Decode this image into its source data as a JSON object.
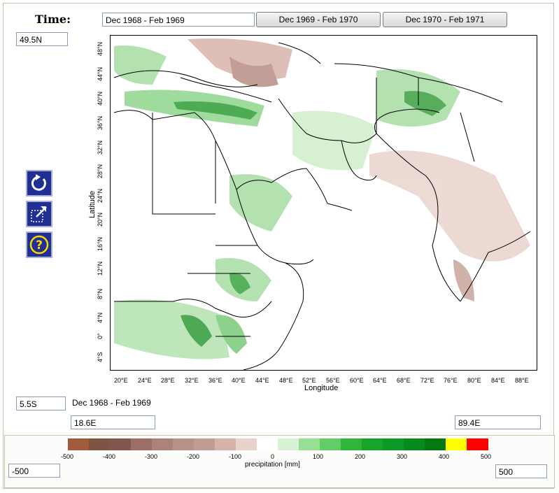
{
  "time": {
    "label": "Time:",
    "current": "Dec 1968 - Feb 1969",
    "next_button": "Dec 1969 - Feb 1970",
    "next2_button": "Dec 1970 - Feb 1971"
  },
  "bounds": {
    "north": "49.5N",
    "south": "5.5S",
    "west": "18.6E",
    "east": "89.4E"
  },
  "period_caption": "Dec 1968 - Feb 1969",
  "icons": {
    "refresh": "refresh-icon",
    "zoom": "zoom-region-icon",
    "help": "help-icon"
  },
  "map": {
    "xlabel": "Longitude",
    "ylabel": "Latitude",
    "lat_ticks": [
      "48°N",
      "44°N",
      "40°N",
      "36°N",
      "32°N",
      "28°N",
      "24°N",
      "20°N",
      "16°N",
      "12°N",
      "8°N",
      "4°N",
      "0°",
      "4°S"
    ],
    "lon_ticks": [
      "20°E",
      "24°E",
      "28°E",
      "32°E",
      "36°E",
      "40°E",
      "44°E",
      "48°E",
      "52°E",
      "56°E",
      "60°E",
      "64°E",
      "68°E",
      "72°E",
      "76°E",
      "80°E",
      "84°E",
      "88°E"
    ]
  },
  "colorbar": {
    "title": "precipitation [mm]",
    "min_field": "-500",
    "max_field": "500",
    "tick_labels": [
      "-500",
      "-400",
      "-300",
      "-200",
      "-100",
      "0",
      "100",
      "200",
      "300",
      "400",
      "500"
    ],
    "colors": [
      "#a05a3c",
      "#7e5544",
      "#84574e",
      "#9c6e66",
      "#ab8378",
      "#b79188",
      "#c19e95",
      "#d5b3aa",
      "#e8d2cc",
      "#ffffff",
      "#d7f2d5",
      "#96df94",
      "#61cd64",
      "#30b43a",
      "#18a42a",
      "#0b9a25",
      "#078a1c",
      "#067812",
      "#ffff00",
      "#ff0000"
    ]
  }
}
